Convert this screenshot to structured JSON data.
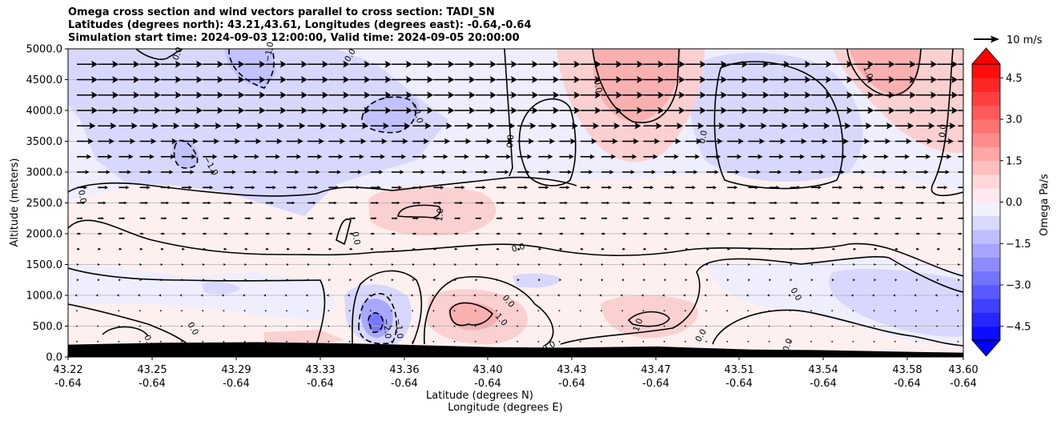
{
  "chart_data": {
    "type": "heatmap",
    "title_lines": [
      "Omega cross section and wind vectors parallel to cross section: TADI_SN",
      "Latitudes (degrees north): 43.21,43.61, Longitudes (degrees east): -0.64,-0.64",
      "Simulation start time: 2024-09-03 12:00:00, Valid time: 2024-09-05 20:00:00"
    ],
    "xlabel_line1": "Latitude (degrees N)",
    "xlabel_line2": "Longitude (degrees E)",
    "ylabel": "Altitude (meters)",
    "x_ticks": [
      {
        "lat": "43.22",
        "lon": "-0.64"
      },
      {
        "lat": "43.25",
        "lon": "-0.64"
      },
      {
        "lat": "43.29",
        "lon": "-0.64"
      },
      {
        "lat": "43.33",
        "lon": "-0.64"
      },
      {
        "lat": "43.36",
        "lon": "-0.64"
      },
      {
        "lat": "43.40",
        "lon": "-0.64"
      },
      {
        "lat": "43.43",
        "lon": "-0.64"
      },
      {
        "lat": "43.47",
        "lon": "-0.64"
      },
      {
        "lat": "43.51",
        "lon": "-0.64"
      },
      {
        "lat": "43.54",
        "lon": "-0.64"
      },
      {
        "lat": "43.58",
        "lon": "-0.64"
      },
      {
        "lat": "43.60",
        "lon": "-0.64"
      }
    ],
    "y_ticks": [
      0,
      500,
      1000,
      1500,
      2000,
      2500,
      3000,
      3500,
      4000,
      4500,
      5000
    ],
    "y_tick_labels": [
      "0.0",
      "500.0",
      "1000.0",
      "1500.0",
      "2000.0",
      "2500.0",
      "3000.0",
      "3500.0",
      "4000.0",
      "4500.0",
      "5000.0"
    ],
    "ylim": [
      0,
      5000
    ],
    "grid": "horizontal",
    "colorbar": {
      "label": "Omega Pa/s",
      "range": [
        -5,
        5
      ],
      "tick_values": [
        4.5,
        3.0,
        1.5,
        0.0,
        -1.5,
        -3.0,
        -4.5
      ],
      "tick_labels": [
        "4.5",
        "3.0",
        "1.5",
        "0.0",
        "−1.5",
        "−3.0",
        "−4.5"
      ],
      "extend": "both",
      "negative_color": "#0000ff",
      "positive_color": "#ff0000"
    },
    "quiver_key": {
      "label": "10 m/s",
      "value_ms": 10
    },
    "wind_rows": [
      {
        "altitude": 4750,
        "speed_ms": 10
      },
      {
        "altitude": 4500,
        "speed_ms": 10
      },
      {
        "altitude": 4250,
        "speed_ms": 10
      },
      {
        "altitude": 4000,
        "speed_ms": 10
      },
      {
        "altitude": 3750,
        "speed_ms": 9
      },
      {
        "altitude": 3500,
        "speed_ms": 8
      },
      {
        "altitude": 3250,
        "speed_ms": 7
      },
      {
        "altitude": 3000,
        "speed_ms": 6
      },
      {
        "altitude": 2750,
        "speed_ms": 5
      },
      {
        "altitude": 2500,
        "speed_ms": 4
      },
      {
        "altitude": 2250,
        "speed_ms": 3
      },
      {
        "altitude": 2000,
        "speed_ms": 2
      },
      {
        "altitude": 1750,
        "speed_ms": 1.5
      },
      {
        "altitude": 1500,
        "speed_ms": 1
      },
      {
        "altitude": 1250,
        "speed_ms": 1
      },
      {
        "altitude": 1000,
        "speed_ms": -1
      },
      {
        "altitude": 750,
        "speed_ms": -0.5
      },
      {
        "altitude": 500,
        "speed_ms": 0.5
      },
      {
        "altitude": 250,
        "speed_ms": 0.5
      }
    ],
    "contour_labels": [
      "0.0",
      "1.0",
      "−1.0",
      "−2.0"
    ],
    "terrain_altitude_m": [
      {
        "lat": 43.22,
        "alt": 200
      },
      {
        "lat": 43.26,
        "alt": 230
      },
      {
        "lat": 43.3,
        "alt": 240
      },
      {
        "lat": 43.34,
        "alt": 220
      },
      {
        "lat": 43.38,
        "alt": 180
      },
      {
        "lat": 43.4,
        "alt": 160
      },
      {
        "lat": 43.43,
        "alt": 150
      },
      {
        "lat": 43.47,
        "alt": 170
      },
      {
        "lat": 43.51,
        "alt": 120
      },
      {
        "lat": 43.54,
        "alt": 110
      },
      {
        "lat": 43.58,
        "alt": 80
      },
      {
        "lat": 43.6,
        "alt": 70
      }
    ]
  }
}
